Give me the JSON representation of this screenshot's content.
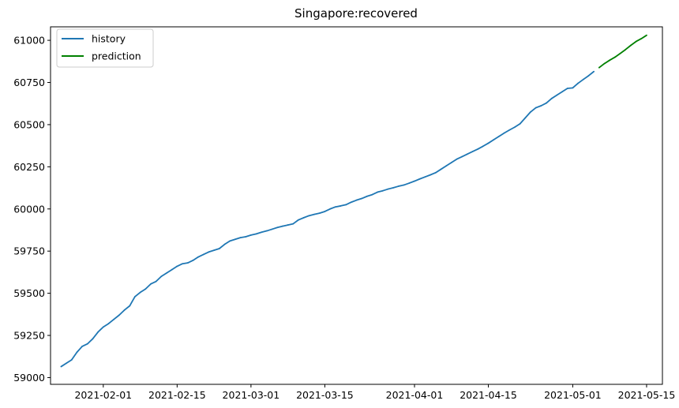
{
  "chart_data": {
    "type": "line",
    "title": "Singapore:recovered",
    "xlabel": "",
    "ylabel": "",
    "xlim": [
      "2021-01-22",
      "2021-05-18"
    ],
    "ylim": [
      58960,
      61080
    ],
    "x_ticks": [
      {
        "date": "2021-02-01",
        "label": "2021-02-01"
      },
      {
        "date": "2021-02-15",
        "label": "2021-02-15"
      },
      {
        "date": "2021-03-01",
        "label": "2021-03-01"
      },
      {
        "date": "2021-03-15",
        "label": "2021-03-15"
      },
      {
        "date": "2021-04-01",
        "label": "2021-04-01"
      },
      {
        "date": "2021-04-15",
        "label": "2021-04-15"
      },
      {
        "date": "2021-05-01",
        "label": "2021-05-01"
      },
      {
        "date": "2021-05-15",
        "label": "2021-05-15"
      }
    ],
    "y_ticks": [
      59000,
      59250,
      59500,
      59750,
      60000,
      60250,
      60500,
      60750,
      61000
    ],
    "grid": false,
    "legend_position": "top-left",
    "series": [
      {
        "name": "history",
        "color": "#1f77b4",
        "x": [
          "2021-01-24",
          "2021-01-25",
          "2021-01-26",
          "2021-01-27",
          "2021-01-28",
          "2021-01-29",
          "2021-01-30",
          "2021-01-31",
          "2021-02-01",
          "2021-02-02",
          "2021-02-03",
          "2021-02-04",
          "2021-02-05",
          "2021-02-06",
          "2021-02-07",
          "2021-02-08",
          "2021-02-09",
          "2021-02-10",
          "2021-02-11",
          "2021-02-12",
          "2021-02-13",
          "2021-02-14",
          "2021-02-15",
          "2021-02-16",
          "2021-02-17",
          "2021-02-18",
          "2021-02-19",
          "2021-02-20",
          "2021-02-21",
          "2021-02-22",
          "2021-02-23",
          "2021-02-24",
          "2021-02-25",
          "2021-02-26",
          "2021-02-27",
          "2021-02-28",
          "2021-03-01",
          "2021-03-02",
          "2021-03-03",
          "2021-03-04",
          "2021-03-05",
          "2021-03-06",
          "2021-03-07",
          "2021-03-08",
          "2021-03-09",
          "2021-03-10",
          "2021-03-11",
          "2021-03-12",
          "2021-03-13",
          "2021-03-14",
          "2021-03-15",
          "2021-03-16",
          "2021-03-17",
          "2021-03-18",
          "2021-03-19",
          "2021-03-20",
          "2021-03-21",
          "2021-03-22",
          "2021-03-23",
          "2021-03-24",
          "2021-03-25",
          "2021-03-26",
          "2021-03-27",
          "2021-03-28",
          "2021-03-29",
          "2021-03-30",
          "2021-03-31",
          "2021-04-01",
          "2021-04-02",
          "2021-04-03",
          "2021-04-04",
          "2021-04-05",
          "2021-04-06",
          "2021-04-07",
          "2021-04-08",
          "2021-04-09",
          "2021-04-10",
          "2021-04-11",
          "2021-04-12",
          "2021-04-13",
          "2021-04-14",
          "2021-04-15",
          "2021-04-16",
          "2021-04-17",
          "2021-04-18",
          "2021-04-19",
          "2021-04-20",
          "2021-04-21",
          "2021-04-22",
          "2021-04-23",
          "2021-04-24",
          "2021-04-25",
          "2021-04-26",
          "2021-04-27",
          "2021-04-28",
          "2021-04-29",
          "2021-04-30",
          "2021-05-01",
          "2021-05-02",
          "2021-05-03",
          "2021-05-04",
          "2021-05-05"
        ],
        "values": [
          59065,
          59085,
          59105,
          59150,
          59185,
          59200,
          59230,
          59270,
          59300,
          59320,
          59345,
          59370,
          59400,
          59425,
          59480,
          59505,
          59525,
          59555,
          59570,
          59600,
          59620,
          59640,
          59660,
          59675,
          59680,
          59695,
          59715,
          59730,
          59745,
          59755,
          59765,
          59790,
          59810,
          59820,
          59830,
          59835,
          59845,
          59852,
          59862,
          59870,
          59880,
          59890,
          59898,
          59905,
          59912,
          59935,
          59948,
          59960,
          59968,
          59975,
          59985,
          60000,
          60012,
          60018,
          60025,
          60040,
          60052,
          60062,
          60075,
          60085,
          60100,
          60108,
          60118,
          60126,
          60135,
          60142,
          60153,
          60165,
          60178,
          60190,
          60202,
          60215,
          60235,
          60255,
          60275,
          60295,
          60310,
          60325,
          60340,
          60355,
          60372,
          60390,
          60410,
          60430,
          60450,
          60468,
          60485,
          60505,
          60540,
          60575,
          60600,
          60612,
          60628,
          60655,
          60675,
          60695,
          60715,
          60718,
          60745,
          60768,
          60790,
          60815
        ]
      },
      {
        "name": "prediction",
        "color": "#008000",
        "x": [
          "2021-05-06",
          "2021-05-07",
          "2021-05-08",
          "2021-05-09",
          "2021-05-10",
          "2021-05-11",
          "2021-05-12",
          "2021-05-13",
          "2021-05-14",
          "2021-05-15"
        ],
        "values": [
          60838,
          60862,
          60882,
          60900,
          60922,
          60945,
          60970,
          60993,
          61010,
          61030
        ]
      }
    ]
  }
}
